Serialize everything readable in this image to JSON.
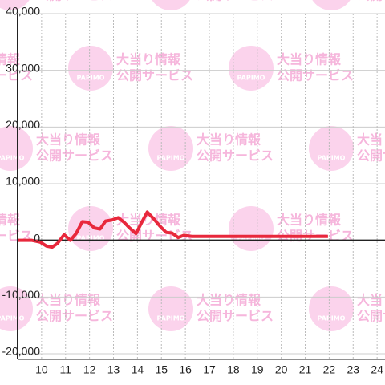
{
  "chart_data": {
    "type": "line",
    "watermark": {
      "line1": "大当り情報",
      "line2": "公開サービス",
      "logo": "PAPIMO"
    },
    "x": [
      9.0,
      9.6,
      9.94,
      10.2,
      10.44,
      10.67,
      10.94,
      11.2,
      11.44,
      11.7,
      11.94,
      12.2,
      12.44,
      12.67,
      12.94,
      13.2,
      13.44,
      13.67,
      13.94,
      14.18,
      14.41,
      14.68,
      14.94,
      15.2,
      15.44,
      15.7,
      15.94,
      16.27,
      21.95
    ],
    "series": [
      {
        "color": "#e8283c",
        "values": [
          0,
          0,
          -300,
          -1000,
          -1200,
          -500,
          1000,
          0,
          1200,
          3300,
          3200,
          2200,
          2000,
          3400,
          3600,
          4000,
          3200,
          2200,
          1200,
          3200,
          5000,
          3800,
          2500,
          1400,
          1300,
          500,
          900,
          700,
          700
        ]
      }
    ],
    "xlim": [
      9,
      24.33
    ],
    "xticks": [
      10,
      11,
      12,
      13,
      14,
      15,
      16,
      17,
      18,
      19,
      20,
      21,
      22,
      23,
      24
    ],
    "ylim": [
      -20000,
      40000
    ],
    "yticks": [
      {
        "value": -20000,
        "label": "-20,000"
      },
      {
        "value": -10000,
        "label": "-10,000"
      },
      0,
      {
        "value": 10000,
        "label": "10,000"
      },
      {
        "value": 20000,
        "label": "20,000"
      },
      {
        "value": 30000,
        "label": "30,000"
      },
      {
        "value": 40000,
        "label": "40,000"
      }
    ],
    "grid": true
  }
}
